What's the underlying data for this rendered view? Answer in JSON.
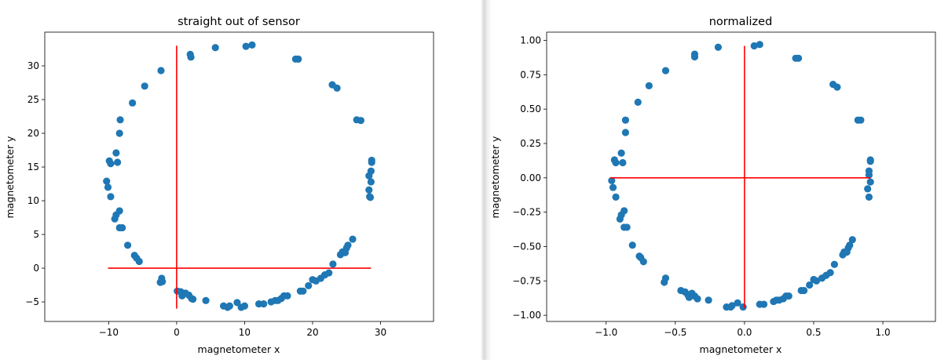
{
  "chart_data": [
    {
      "type": "scatter",
      "title": "straight out of sensor",
      "xlabel": "magnetometer x",
      "ylabel": "magnetometer y",
      "xlim": [
        -19.4,
        37.8
      ],
      "ylim": [
        -7.9,
        35.0
      ],
      "xticks": [
        -10,
        0,
        10,
        20,
        30
      ],
      "xtick_labels": [
        "−10",
        "0",
        "10",
        "20",
        "30"
      ],
      "yticks": [
        -5,
        0,
        5,
        10,
        15,
        20,
        25,
        30
      ],
      "ytick_labels": [
        "−5",
        "0",
        "5",
        "10",
        "15",
        "20",
        "25",
        "30"
      ],
      "grid": false,
      "marker_color": "#1f77b4",
      "line_color": "#ff0000",
      "lines": [
        {
          "x": [
            0,
            0
          ],
          "y": [
            -6.0,
            33.0
          ]
        },
        {
          "x": [
            -10.1,
            28.6
          ],
          "y": [
            0,
            0
          ]
        }
      ],
      "points": [
        [
          5.7,
          32.7
        ],
        [
          10.2,
          32.9
        ],
        [
          11.1,
          33.1
        ],
        [
          2.0,
          31.7
        ],
        [
          2.1,
          31.3
        ],
        [
          -2.3,
          29.3
        ],
        [
          -4.7,
          27.0
        ],
        [
          -6.5,
          24.5
        ],
        [
          -8.3,
          22.0
        ],
        [
          -8.4,
          20.0
        ],
        [
          -8.9,
          17.1
        ],
        [
          -8.7,
          15.7
        ],
        [
          -9.9,
          15.9
        ],
        [
          -9.7,
          15.5
        ],
        [
          -10.3,
          12.9
        ],
        [
          -10.1,
          12.0
        ],
        [
          -9.7,
          10.6
        ],
        [
          -8.4,
          8.5
        ],
        [
          -8.9,
          7.9
        ],
        [
          -9.1,
          7.3
        ],
        [
          -8.4,
          6.0
        ],
        [
          -8.0,
          6.0
        ],
        [
          -7.2,
          3.4
        ],
        [
          -6.2,
          1.9
        ],
        [
          -5.9,
          1.5
        ],
        [
          -5.5,
          1.0
        ],
        [
          -2.2,
          -1.5
        ],
        [
          -2.4,
          -2.1
        ],
        [
          -2.1,
          -2.0
        ],
        [
          0.1,
          -3.4
        ],
        [
          0.6,
          -3.5
        ],
        [
          0.8,
          -4.1
        ],
        [
          1.3,
          -3.7
        ],
        [
          1.8,
          -4.0
        ],
        [
          2.2,
          -4.5
        ],
        [
          2.4,
          -4.6
        ],
        [
          4.3,
          -4.8
        ],
        [
          6.9,
          -5.6
        ],
        [
          7.5,
          -5.8
        ],
        [
          7.8,
          -5.6
        ],
        [
          8.9,
          -5.1
        ],
        [
          9.5,
          -5.8
        ],
        [
          10.0,
          -5.6
        ],
        [
          12.1,
          -5.3
        ],
        [
          12.8,
          -5.3
        ],
        [
          13.9,
          -5.0
        ],
        [
          14.5,
          -4.8
        ],
        [
          14.9,
          -4.8
        ],
        [
          15.4,
          -4.5
        ],
        [
          15.8,
          -4.1
        ],
        [
          16.3,
          -4.1
        ],
        [
          18.2,
          -3.4
        ],
        [
          18.6,
          -3.4
        ],
        [
          19.4,
          -2.6
        ],
        [
          20.0,
          -1.7
        ],
        [
          20.5,
          -1.9
        ],
        [
          21.2,
          -1.5
        ],
        [
          21.8,
          -1.0
        ],
        [
          22.4,
          -0.7
        ],
        [
          23.0,
          0.6
        ],
        [
          24.1,
          2.0
        ],
        [
          24.4,
          2.4
        ],
        [
          24.8,
          2.3
        ],
        [
          25.0,
          3.0
        ],
        [
          25.2,
          3.4
        ],
        [
          25.9,
          4.3
        ],
        [
          28.4,
          10.6
        ],
        [
          28.5,
          10.5
        ],
        [
          28.3,
          11.6
        ],
        [
          28.6,
          12.8
        ],
        [
          28.3,
          13.7
        ],
        [
          28.6,
          14.4
        ],
        [
          28.7,
          16.0
        ],
        [
          28.7,
          15.7
        ],
        [
          26.5,
          22.0
        ],
        [
          27.1,
          21.9
        ],
        [
          22.9,
          27.2
        ],
        [
          23.6,
          26.7
        ],
        [
          17.5,
          31.0
        ],
        [
          17.9,
          31.0
        ]
      ]
    },
    {
      "type": "scatter",
      "title": "normalized",
      "xlabel": "magnetometer x",
      "ylabel": "magnetometer y",
      "xlim": [
        -1.43,
        1.38
      ],
      "ylim": [
        -1.045,
        1.06
      ],
      "xticks": [
        -1.0,
        -0.5,
        0.0,
        0.5,
        1.0
      ],
      "xtick_labels": [
        "−1.0",
        "−0.5",
        "0.0",
        "0.5",
        "1.0"
      ],
      "yticks": [
        -1.0,
        -0.75,
        -0.5,
        -0.25,
        0.0,
        0.25,
        0.5,
        0.75,
        1.0
      ],
      "ytick_labels": [
        "−1.00",
        "−0.75",
        "−0.50",
        "−0.25",
        "0.00",
        "0.25",
        "0.50",
        "0.75",
        "1.00"
      ],
      "grid": false,
      "marker_color": "#1f77b4",
      "line_color": "#ff0000",
      "lines": [
        {
          "x": [
            0,
            0
          ],
          "y": [
            -0.95,
            0.96
          ]
        },
        {
          "x": [
            -0.97,
            0.91
          ],
          "y": [
            0,
            0
          ]
        }
      ],
      "points": [
        [
          0.07,
          0.96
        ],
        [
          0.11,
          0.97
        ],
        [
          -0.19,
          0.95
        ],
        [
          -0.36,
          0.9
        ],
        [
          -0.36,
          0.88
        ],
        [
          -0.57,
          0.78
        ],
        [
          -0.69,
          0.67
        ],
        [
          -0.77,
          0.55
        ],
        [
          -0.86,
          0.42
        ],
        [
          -0.86,
          0.33
        ],
        [
          -0.89,
          0.18
        ],
        [
          -0.88,
          0.11
        ],
        [
          -0.94,
          0.13
        ],
        [
          -0.93,
          0.11
        ],
        [
          -0.96,
          -0.02
        ],
        [
          -0.95,
          -0.07
        ],
        [
          -0.93,
          -0.14
        ],
        [
          -0.87,
          -0.24
        ],
        [
          -0.89,
          -0.27
        ],
        [
          -0.9,
          -0.3
        ],
        [
          -0.87,
          -0.36
        ],
        [
          -0.85,
          -0.36
        ],
        [
          -0.81,
          -0.49
        ],
        [
          -0.76,
          -0.57
        ],
        [
          -0.75,
          -0.58
        ],
        [
          -0.73,
          -0.61
        ],
        [
          -0.57,
          -0.73
        ],
        [
          -0.58,
          -0.76
        ],
        [
          -0.46,
          -0.82
        ],
        [
          -0.43,
          -0.83
        ],
        [
          -0.41,
          -0.85
        ],
        [
          -0.38,
          -0.84
        ],
        [
          -0.36,
          -0.86
        ],
        [
          -0.34,
          -0.88
        ],
        [
          -0.4,
          -0.87
        ],
        [
          -0.26,
          -0.89
        ],
        [
          -0.13,
          -0.94
        ],
        [
          -0.1,
          -0.94
        ],
        [
          -0.09,
          -0.93
        ],
        [
          -0.05,
          -0.91
        ],
        [
          -0.01,
          -0.94
        ],
        [
          0.11,
          -0.92
        ],
        [
          0.14,
          -0.92
        ],
        [
          0.21,
          -0.9
        ],
        [
          0.23,
          -0.89
        ],
        [
          0.25,
          -0.89
        ],
        [
          0.28,
          -0.88
        ],
        [
          0.3,
          -0.86
        ],
        [
          0.32,
          -0.86
        ],
        [
          0.41,
          -0.82
        ],
        [
          0.43,
          -0.82
        ],
        [
          0.47,
          -0.78
        ],
        [
          0.5,
          -0.74
        ],
        [
          0.52,
          -0.75
        ],
        [
          0.56,
          -0.73
        ],
        [
          0.59,
          -0.71
        ],
        [
          0.62,
          -0.69
        ],
        [
          0.65,
          -0.63
        ],
        [
          0.71,
          -0.56
        ],
        [
          0.72,
          -0.54
        ],
        [
          0.74,
          -0.54
        ],
        [
          0.75,
          -0.51
        ],
        [
          0.76,
          -0.49
        ],
        [
          0.78,
          -0.45
        ],
        [
          0.9,
          -0.14
        ],
        [
          0.89,
          -0.08
        ],
        [
          0.91,
          -0.03
        ],
        [
          0.9,
          0.02
        ],
        [
          0.9,
          0.05
        ],
        [
          0.91,
          0.13
        ],
        [
          0.91,
          0.12
        ],
        [
          0.82,
          0.42
        ],
        [
          0.84,
          0.42
        ],
        [
          0.64,
          0.68
        ],
        [
          0.67,
          0.66
        ],
        [
          0.37,
          0.87
        ],
        [
          0.39,
          0.87
        ]
      ]
    }
  ]
}
